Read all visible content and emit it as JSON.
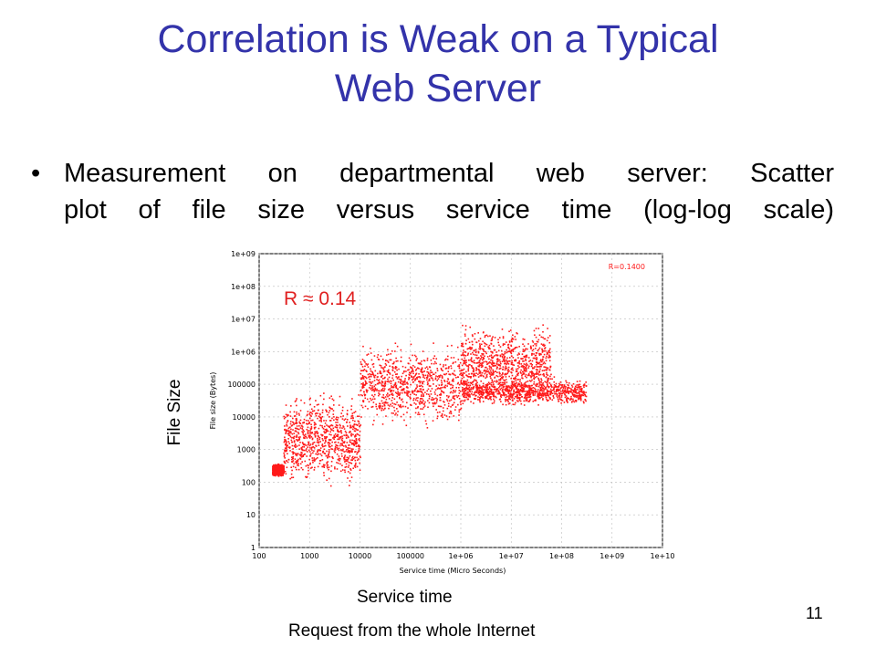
{
  "slide": {
    "title_line1": "Correlation is Weak on a Typical",
    "title_line2": "Web Server",
    "bullet_symbol": "•",
    "bullet_line1": "Measurement on departmental web server: Scatter",
    "bullet_line2": "plot of file size versus service time (log-log scale)",
    "ylabel_overlay": "File Size",
    "xlabel_overlay": "Service time",
    "r_annotation": "R ≈ 0.14",
    "caption": "Request from the whole Internet",
    "page_number": "11"
  },
  "chart_data": {
    "type": "scatter",
    "xlabel": "Service time (Micro Seconds)",
    "ylabel": "File size (Bytes)",
    "x_scale": "log",
    "y_scale": "log",
    "xlim": [
      100,
      10000000000
    ],
    "ylim": [
      1,
      1000000000
    ],
    "x_ticks": [
      "100",
      "1000",
      "10000",
      "100000",
      "1e+06",
      "1e+07",
      "1e+08",
      "1e+09",
      "1e+10"
    ],
    "y_ticks": [
      "1",
      "10",
      "100",
      "1000",
      "10000",
      "100000",
      "1e+06",
      "1e+07",
      "1e+08",
      "1e+09"
    ],
    "legend_text": "R=0.1400",
    "legend_placement": "top-right",
    "grid": true,
    "point_color": "#ff1a1a",
    "correlation": 0.14,
    "density_regions": [
      {
        "x_range": [
          180,
          300
        ],
        "y_range": [
          150,
          400
        ]
      },
      {
        "x_range": [
          300,
          10000
        ],
        "y_range": [
          50,
          100000
        ]
      },
      {
        "x_range": [
          10000,
          1000000
        ],
        "y_range": [
          3000,
          3000000
        ]
      },
      {
        "x_range": [
          1000000,
          60000000
        ],
        "y_range": [
          20000,
          10000000
        ]
      },
      {
        "x_range": [
          1000000,
          300000000
        ],
        "y_range": [
          20000,
          200000
        ]
      }
    ]
  }
}
